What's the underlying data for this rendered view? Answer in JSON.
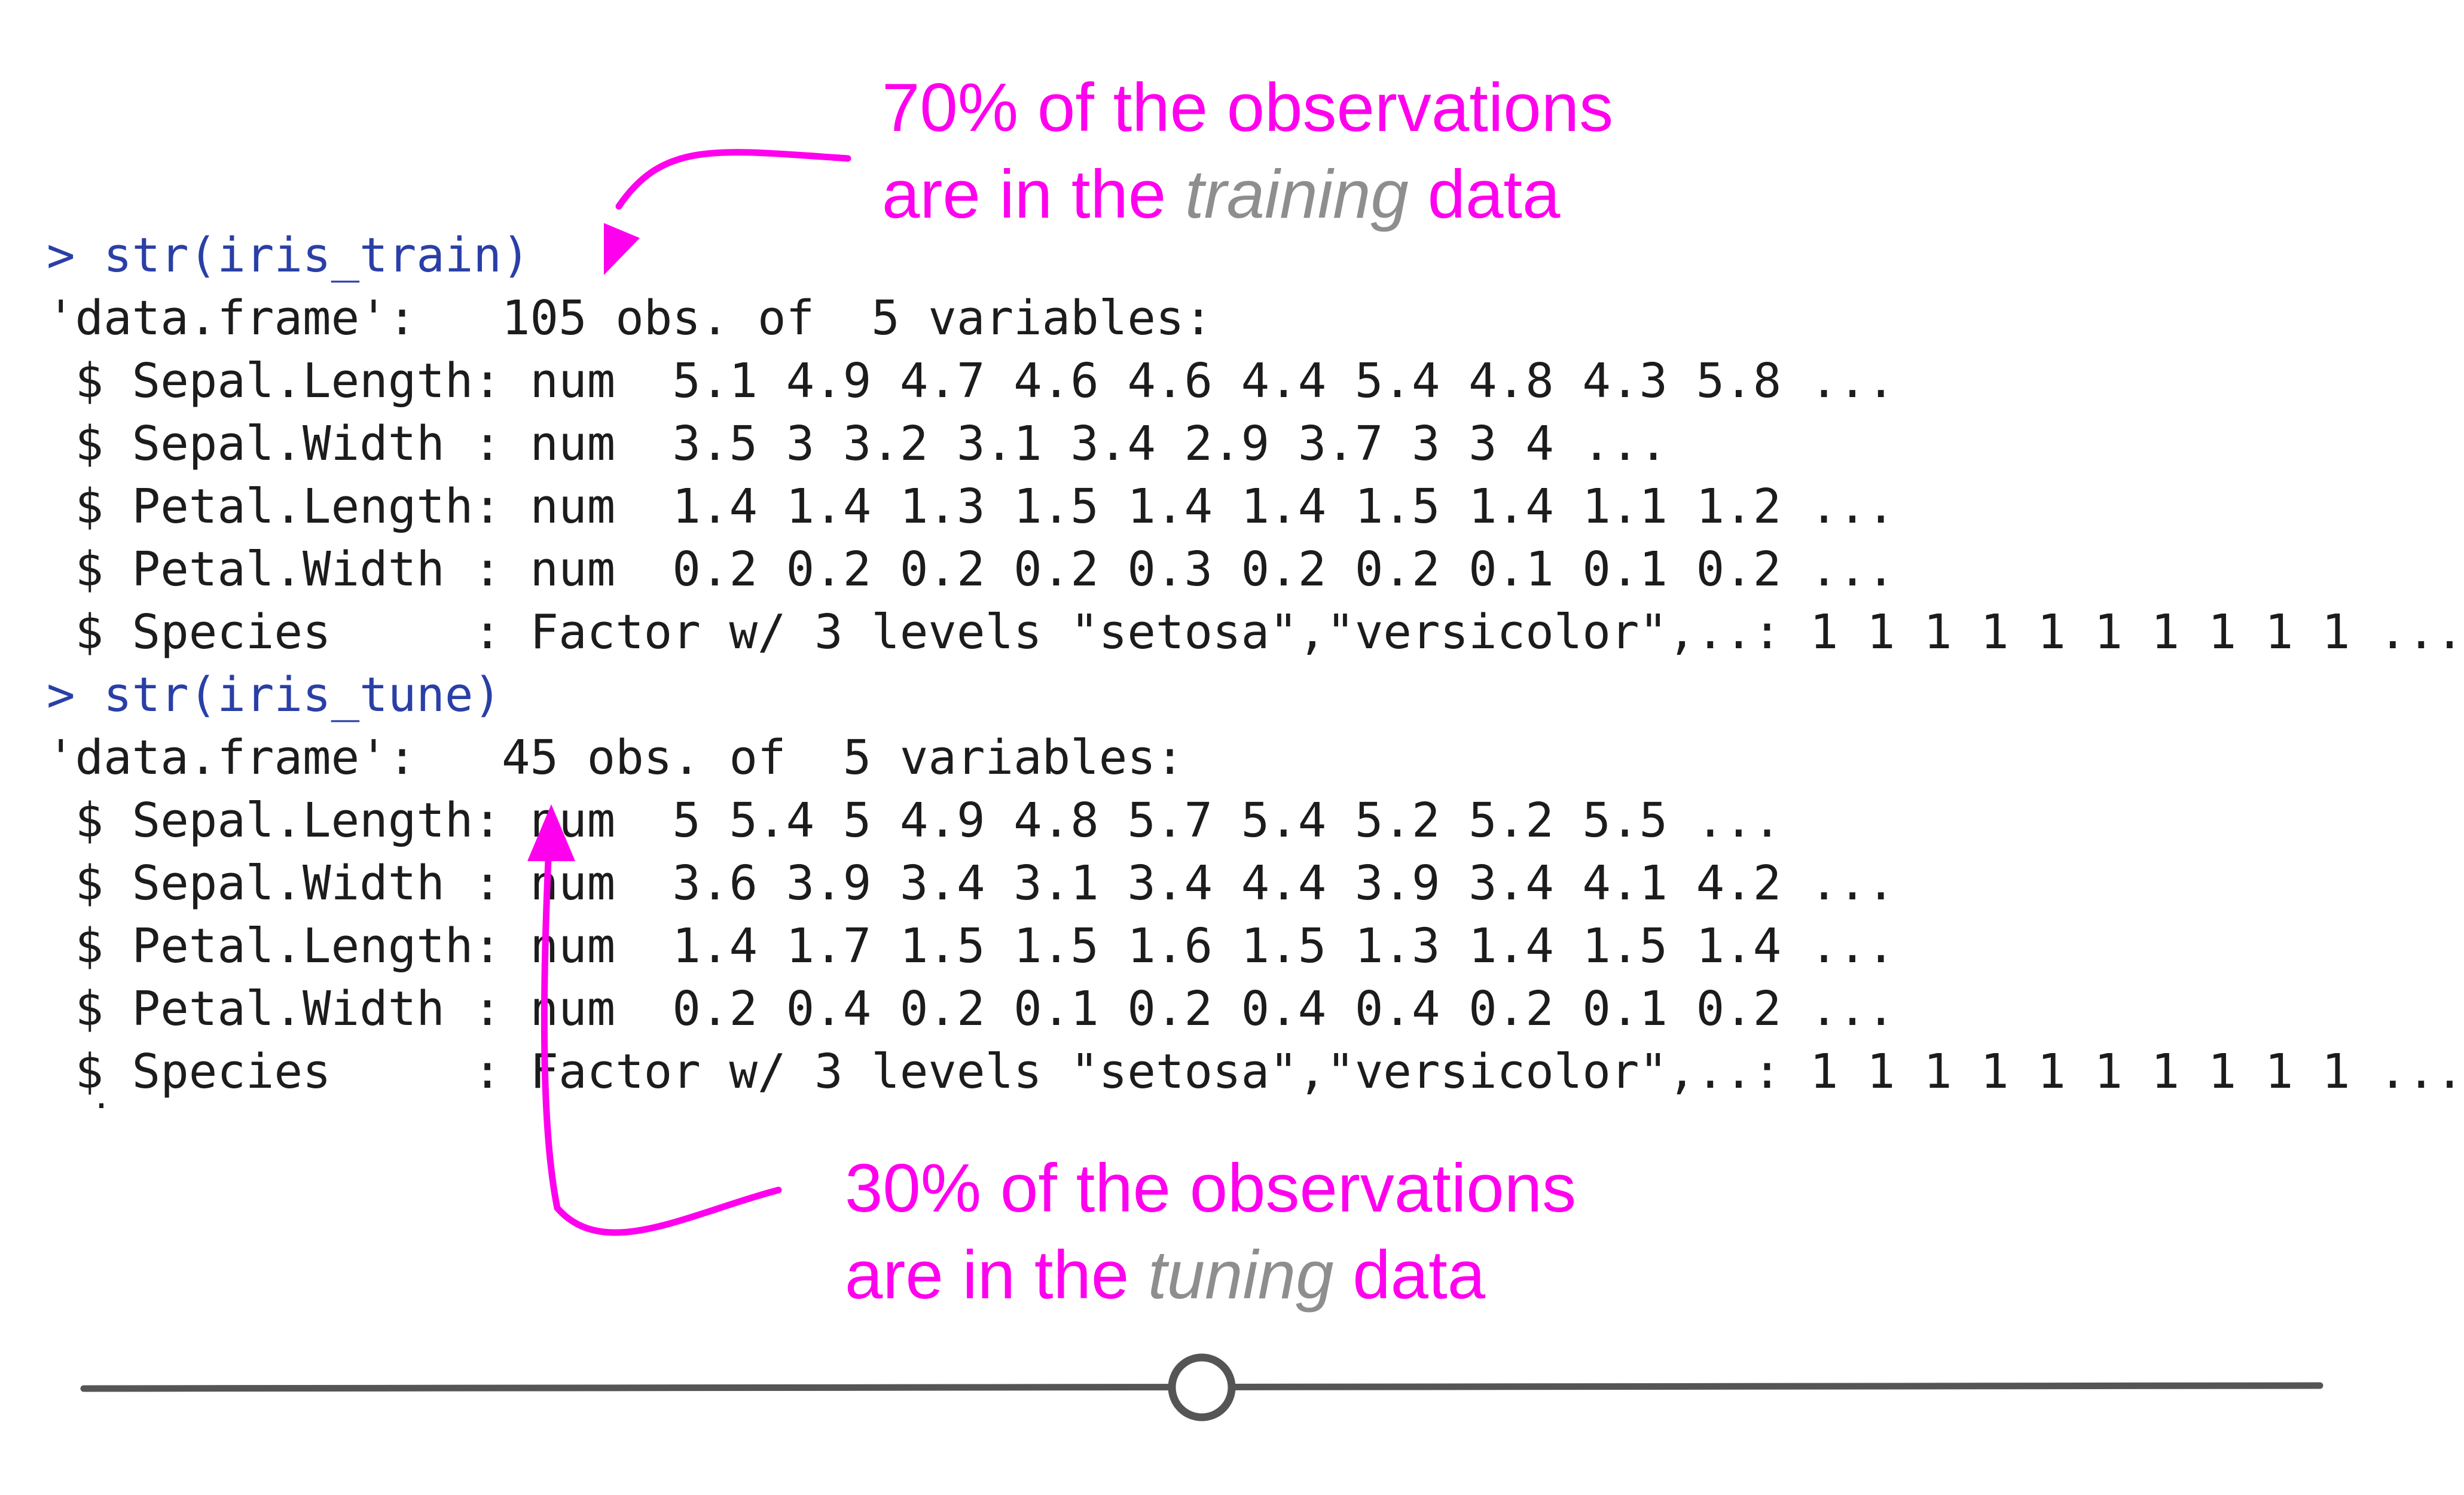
{
  "console": {
    "lines": [
      {
        "text": "> str(iris_train)",
        "kind": "command"
      },
      {
        "text": "'data.frame':   105 obs. of  5 variables:",
        "kind": "output"
      },
      {
        "text": " $ Sepal.Length: num  5.1 4.9 4.7 4.6 4.6 4.4 5.4 4.8 4.3 5.8 ...",
        "kind": "output"
      },
      {
        "text": " $ Sepal.Width : num  3.5 3 3.2 3.1 3.4 2.9 3.7 3 3 4 ...",
        "kind": "output"
      },
      {
        "text": " $ Petal.Length: num  1.4 1.4 1.3 1.5 1.4 1.4 1.5 1.4 1.1 1.2 ...",
        "kind": "output"
      },
      {
        "text": " $ Petal.Width : num  0.2 0.2 0.2 0.2 0.3 0.2 0.2 0.1 0.1 0.2 ...",
        "kind": "output"
      },
      {
        "text": " $ Species     : Factor w/ 3 levels \"setosa\",\"versicolor\",..: 1 1 1 1 1 1 1 1 1 1 ...",
        "kind": "output"
      },
      {
        "text": "> str(iris_tune)",
        "kind": "command"
      },
      {
        "text": "'data.frame':   45 obs. of  5 variables:",
        "kind": "output"
      },
      {
        "text": " $ Sepal.Length: num  5 5.4 5 4.9 4.8 5.7 5.4 5.2 5.2 5.5 ...",
        "kind": "output"
      },
      {
        "text": " $ Sepal.Width : num  3.6 3.9 3.4 3.1 3.4 4.4 3.9 3.4 4.1 4.2 ...",
        "kind": "output"
      },
      {
        "text": " $ Petal.Length: num  1.4 1.7 1.5 1.5 1.6 1.5 1.3 1.4 1.5 1.4 ...",
        "kind": "output"
      },
      {
        "text": " $ Petal.Width : num  0.2 0.4 0.2 0.1 0.2 0.4 0.4 0.2 0.1 0.2 ...",
        "kind": "output"
      },
      {
        "text": " $ Species     : Factor w/ 3 levels \"setosa\",\"versicolor\",..: 1 1 1 1 1 1 1 1 1 1 ...",
        "kind": "output"
      }
    ]
  },
  "annotations": {
    "training": {
      "line1": "70% of the observations",
      "line2_prefix": "are in the ",
      "line2_emph": "training",
      "line2_suffix": " data"
    },
    "tuning": {
      "line1": "30% of the observations",
      "line2_prefix": "are in the ",
      "line2_emph": "tuning",
      "line2_suffix": " data"
    }
  },
  "slider": {
    "value": 0.5
  },
  "colors": {
    "annotation": "#ff00ee",
    "emphasis": "#8e8e8e",
    "command": "#2a3fa6",
    "output": "#1c1c1c",
    "slider": "#555555"
  }
}
